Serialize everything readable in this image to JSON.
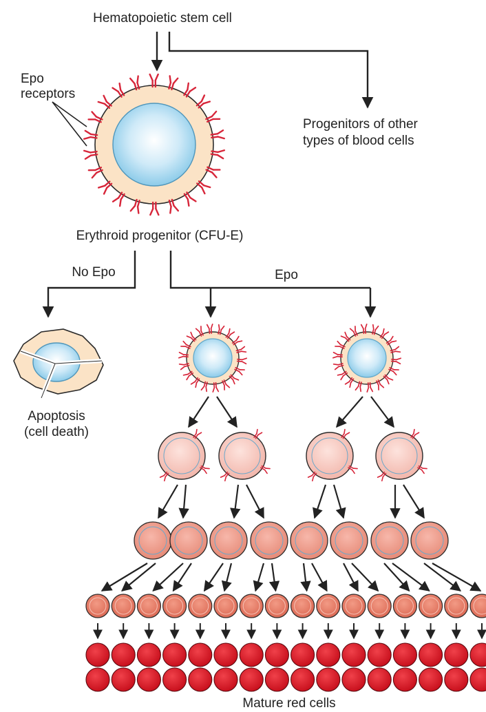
{
  "labels": {
    "stem_cell": "Hematopoietic stem cell",
    "epo_receptors_1": "Epo",
    "epo_receptors_2": "receptors",
    "other_progenitors_1": "Progenitors of other",
    "other_progenitors_2": "types of blood cells",
    "erythroid_progenitor": "Erythroid progenitor (CFU-E)",
    "no_epo": "No Epo",
    "epo": "Epo",
    "apoptosis_1": "Apoptosis",
    "apoptosis_2": "(cell death)",
    "mature_red_cells": "Mature red cells"
  },
  "colors": {
    "receptor": "#d7263a",
    "cytoplasm": "#fbe3c6",
    "nucleus": "#bfe3f5",
    "nucleus_edge": "#5fa6c8",
    "stage2_cell": "#f8cbc4",
    "stage3_cell": "#f1a597",
    "stage4_cell": "#e97b68",
    "mature_cell": "#e01f2b",
    "arrow": "#222222"
  }
}
